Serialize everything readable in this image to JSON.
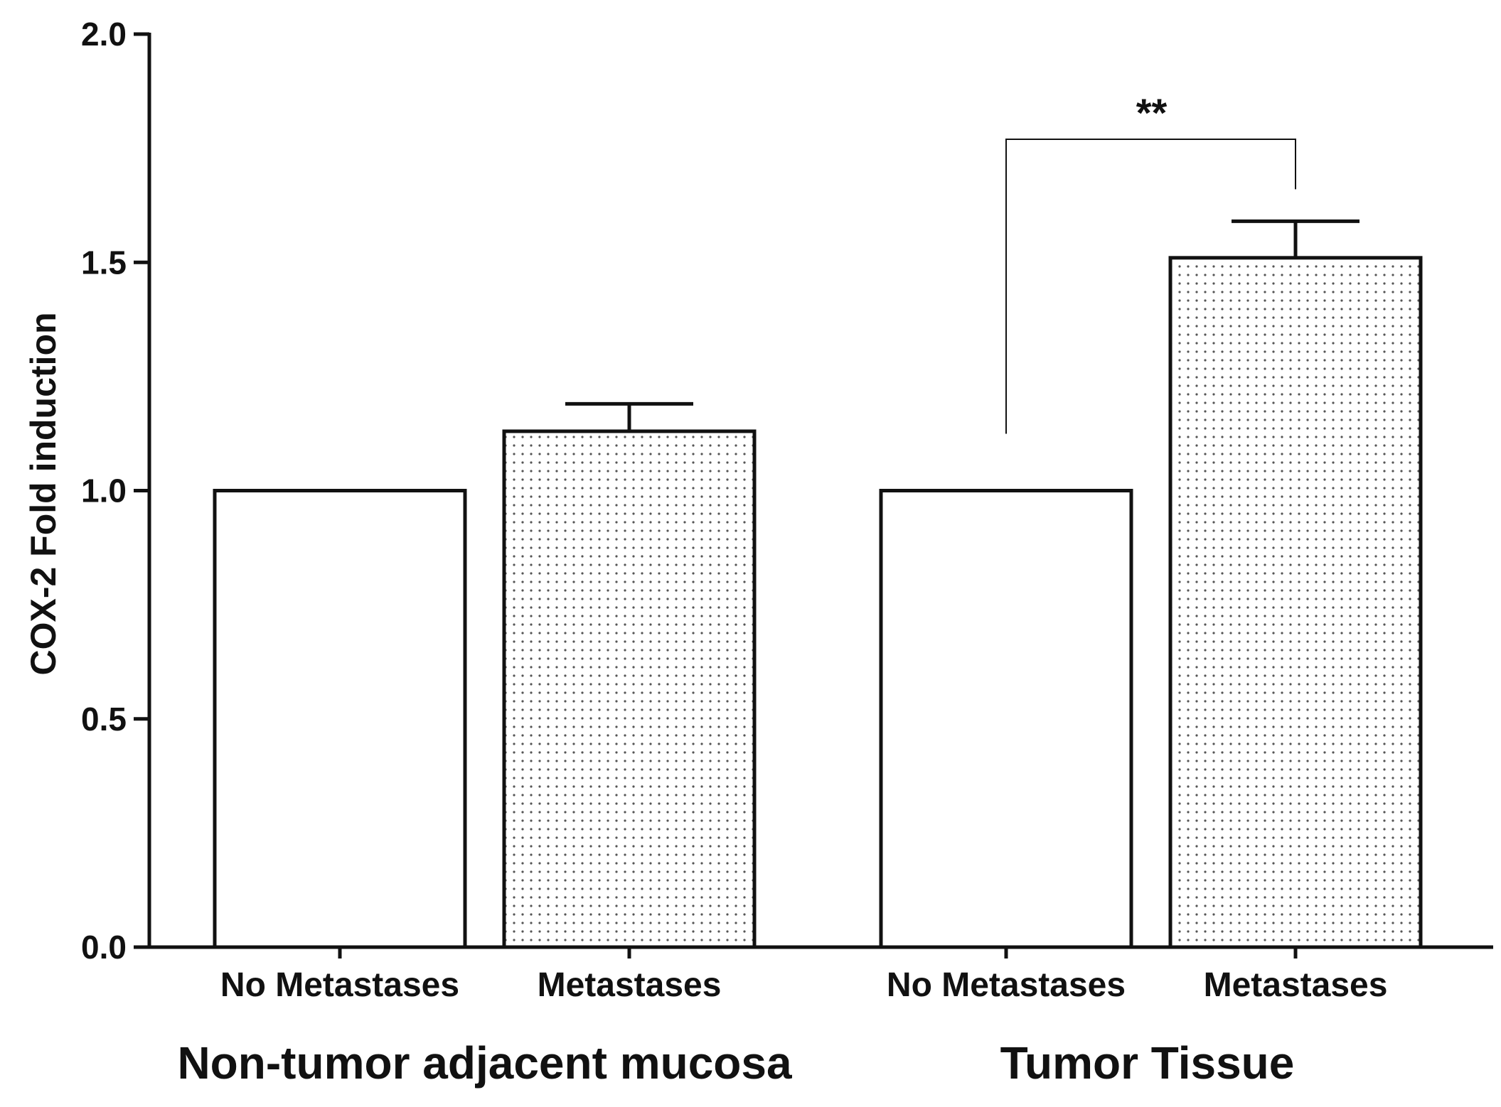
{
  "chart_data": {
    "type": "bar",
    "ylabel": "COX-2 Fold induction",
    "ylim": [
      0,
      2.0
    ],
    "yticks": [
      "0.0",
      "0.5",
      "1.0",
      "1.5",
      "2.0"
    ],
    "grid": false,
    "legend": "none",
    "groups": [
      {
        "label": "Non-tumor adjacent mucosa",
        "bars": [
          {
            "category": "No Metastases",
            "value": 1.0,
            "error": 0,
            "pattern": "none"
          },
          {
            "category": "Metastases",
            "value": 1.13,
            "error": 0.06,
            "pattern": "dots"
          }
        ]
      },
      {
        "label": "Tumor Tissue",
        "bars": [
          {
            "category": "No Metastases",
            "value": 1.0,
            "error": 0,
            "pattern": "none"
          },
          {
            "category": "Metastases",
            "value": 1.51,
            "error": 0.08,
            "pattern": "dots"
          }
        ]
      }
    ],
    "annotations": [
      {
        "text": "**",
        "group": 1,
        "from_bar": 0,
        "to_bar": 1
      }
    ],
    "colors": {
      "bar_fill": "#ffffff",
      "stroke": "#111111",
      "dot": "#555555"
    }
  }
}
